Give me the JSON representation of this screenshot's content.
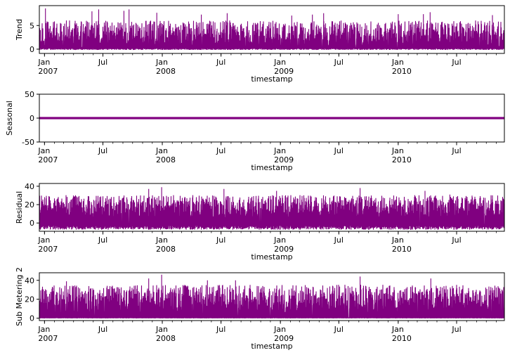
{
  "chart_data": [
    {
      "type": "line",
      "ylabel": "Trend",
      "xlabel": "timestamp",
      "color": "#800080",
      "ylim": [
        -0.9,
        9.2
      ],
      "yticks": [
        0,
        5
      ],
      "x_range": [
        "2006-12-16",
        "2010-11-26"
      ],
      "series": [
        {
          "values_approx": {
            "baseline": 0.3,
            "typical_peak": [
              2,
              6
            ],
            "spikes": [
              {
                "x": "2007-01-04",
                "y": 8.6
              },
              {
                "x": "2007-05-28",
                "y": 8.0
              },
              {
                "x": "2007-06-18",
                "y": 8.4
              },
              {
                "x": "2007-09-04",
                "y": 8.1
              },
              {
                "x": "2007-09-20",
                "y": 8.4
              },
              {
                "x": "2007-12-15",
                "y": 7.7
              },
              {
                "x": "2008-05-01",
                "y": 7.3
              },
              {
                "x": "2008-07-20",
                "y": 7.6
              },
              {
                "x": "2009-02-05",
                "y": 7.1
              },
              {
                "x": "2009-04-10",
                "y": 7.3
              },
              {
                "x": "2009-05-15",
                "y": 7.6
              },
              {
                "x": "2010-01-01",
                "y": 7.4
              },
              {
                "x": "2010-03-20",
                "y": 7.4
              },
              {
                "x": "2010-04-10",
                "y": 7.8
              },
              {
                "x": "2010-10-20",
                "y": 7.2
              }
            ]
          }
        }
      ]
    },
    {
      "type": "line",
      "ylabel": "Seasonal",
      "xlabel": "timestamp",
      "color": "#800080",
      "ylim": [
        -50,
        50
      ],
      "yticks": [
        -50,
        0,
        50
      ],
      "x_range": [
        "2006-12-16",
        "2010-11-26"
      ],
      "series": [
        {
          "values_approx": {
            "constant": 0
          }
        }
      ]
    },
    {
      "type": "line",
      "ylabel": "Residual",
      "xlabel": "timestamp",
      "color": "#800080",
      "ylim": [
        -9,
        43
      ],
      "yticks": [
        0,
        20,
        40
      ],
      "x_range": [
        "2006-12-16",
        "2010-11-26"
      ],
      "series": [
        {
          "values_approx": {
            "baseline": -1.5,
            "min": -7,
            "typical_peak": [
              20,
              30
            ],
            "spikes": [
              {
                "x": "2007-11-20",
                "y": 37
              },
              {
                "x": "2007-12-30",
                "y": 39
              },
              {
                "x": "2008-07-10",
                "y": 37
              },
              {
                "x": "2008-12-20",
                "y": 35
              },
              {
                "x": "2009-09-05",
                "y": 38
              },
              {
                "x": "2010-03-25",
                "y": 35
              },
              {
                "x": "2010-06-10",
                "y": 31
              }
            ]
          }
        }
      ]
    },
    {
      "type": "line",
      "ylabel": "Sub Metering 2",
      "xlabel": "timestamp",
      "color": "#800080",
      "ylim": [
        -2.5,
        48
      ],
      "yticks": [
        0,
        20,
        40
      ],
      "x_range": [
        "2006-12-16",
        "2010-11-26"
      ],
      "series": [
        {
          "values_approx": {
            "baseline": 0.5,
            "typical_peak": [
              20,
              35
            ],
            "spikes": [
              {
                "x": "2007-03-10",
                "y": 39
              },
              {
                "x": "2007-11-20",
                "y": 42
              },
              {
                "x": "2007-12-30",
                "y": 46
              },
              {
                "x": "2008-05-20",
                "y": 40
              },
              {
                "x": "2008-08-15",
                "y": 40
              },
              {
                "x": "2009-09-05",
                "y": 44
              },
              {
                "x": "2010-04-12",
                "y": 42
              },
              {
                "x": "2010-10-15",
                "y": 33
              }
            ]
          }
        }
      ]
    }
  ],
  "x_ticks_major": [
    {
      "date": "2007-01-01",
      "label": "Jan",
      "label2": "2007"
    },
    {
      "date": "2007-07-01",
      "label": "Jul",
      "label2": ""
    },
    {
      "date": "2008-01-01",
      "label": "Jan",
      "label2": "2008"
    },
    {
      "date": "2008-07-01",
      "label": "Jul",
      "label2": ""
    },
    {
      "date": "2009-01-01",
      "label": "Jan",
      "label2": "2009"
    },
    {
      "date": "2009-07-01",
      "label": "Jul",
      "label2": ""
    },
    {
      "date": "2010-01-01",
      "label": "Jan",
      "label2": "2010"
    },
    {
      "date": "2010-07-01",
      "label": "Jul",
      "label2": ""
    }
  ]
}
